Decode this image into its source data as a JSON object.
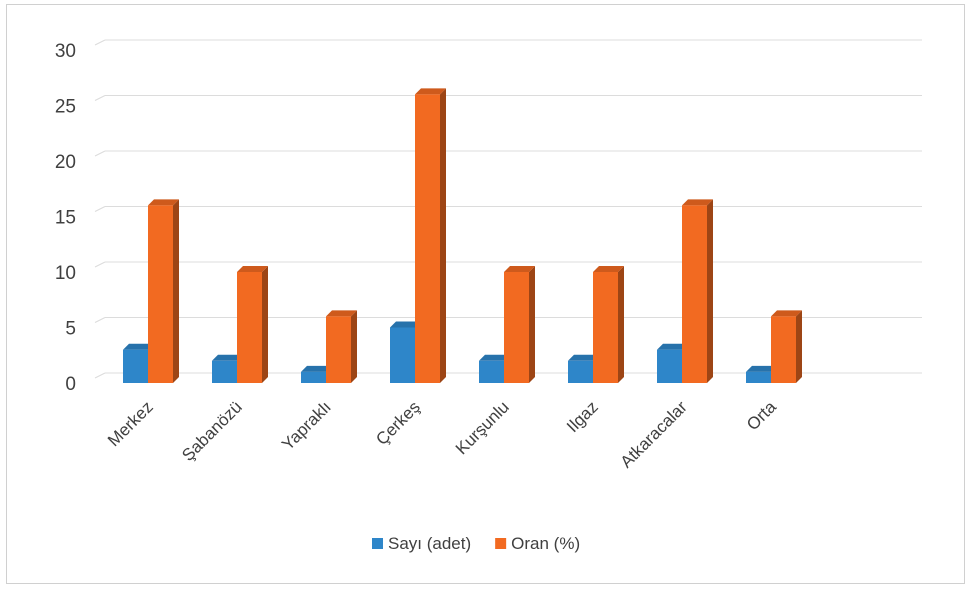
{
  "chart_data": {
    "type": "bar",
    "categories": [
      "Merkez",
      "Şabanözü",
      "Yapraklı",
      "Çerkeş",
      "Kurşunlu",
      "Ilgaz",
      "Atkaracalar",
      "Orta"
    ],
    "series": [
      {
        "name": "Sayı  (adet)",
        "values": [
          3,
          2,
          1,
          5,
          2,
          2,
          3,
          1
        ],
        "color": "#2e86c9"
      },
      {
        "name": "Oran (%)",
        "values": [
          16,
          10,
          6,
          26,
          10,
          10,
          16,
          6
        ],
        "color": "#f26a21"
      }
    ],
    "yticks": [
      "0",
      "5",
      "10",
      "15",
      "20",
      "25",
      "30"
    ],
    "ylim": [
      0,
      30
    ],
    "grid": true,
    "legend_position": "bottom",
    "style": "3d-clustered-column"
  }
}
